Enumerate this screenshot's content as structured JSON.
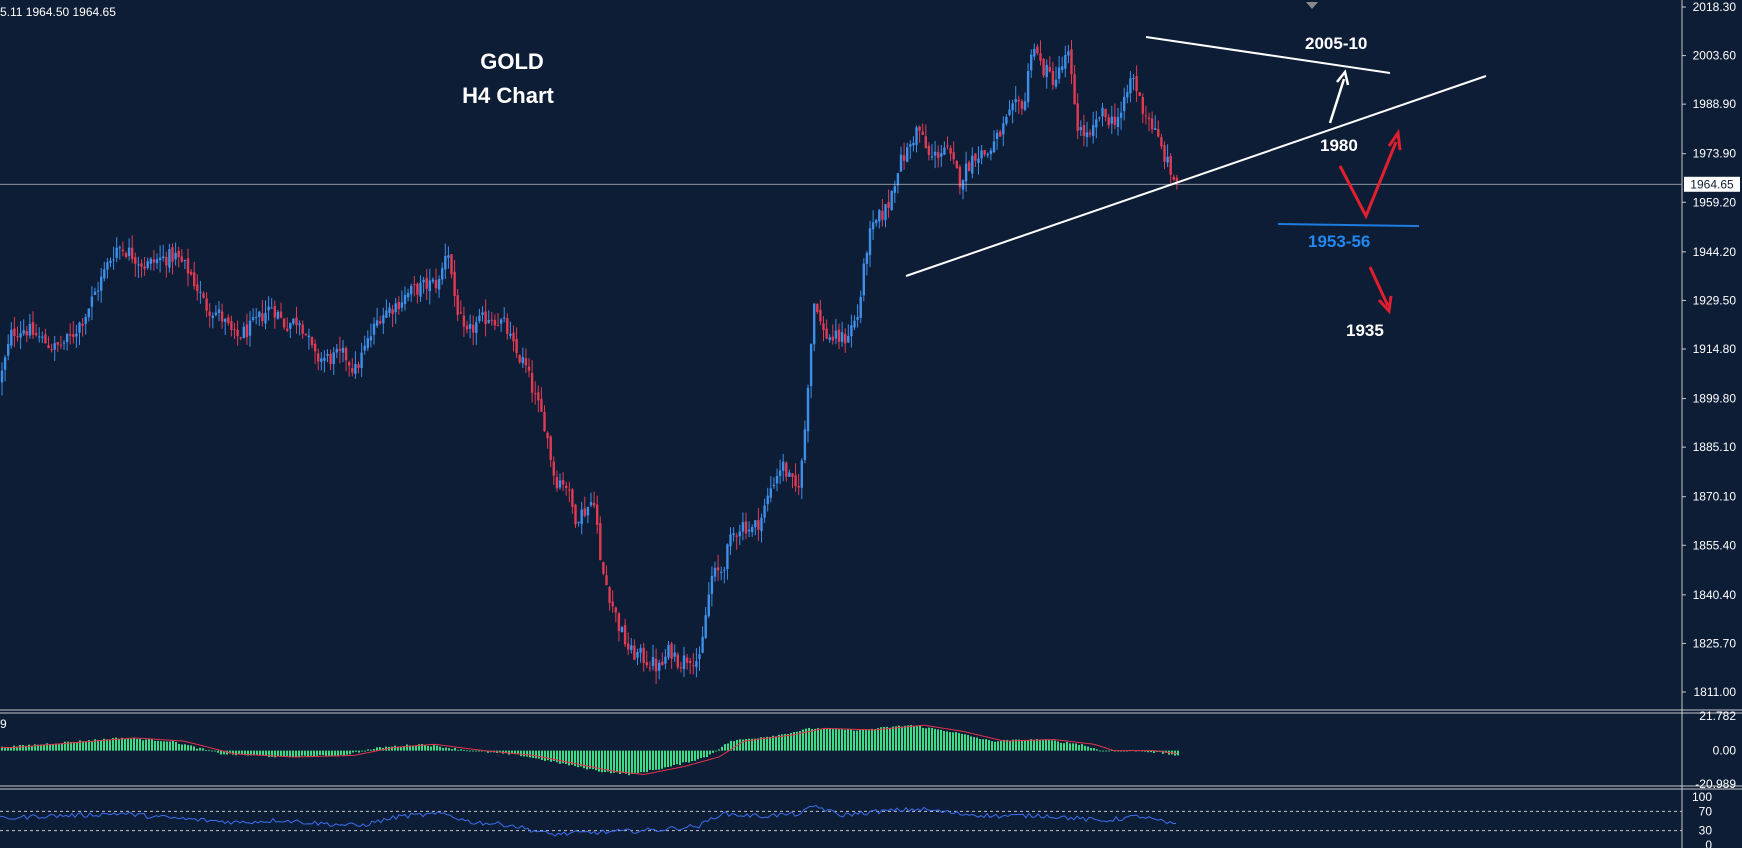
{
  "header": {
    "ohlc_readout": "5.11 1964.50 1964.65",
    "title_line1": "GOLD",
    "title_line2": "H4 Chart"
  },
  "colors": {
    "background": "#0d1d36",
    "bull": "#3d8fe8",
    "bear": "#e23a52",
    "hist": "#3ddc84",
    "signal": "#e2344a",
    "rsi": "#3a6ff0",
    "trendline": "#ffffff",
    "support": "#1e7ce0"
  },
  "annotations": {
    "target_up": "2005-10",
    "pivot": "1980",
    "support": "1953-56",
    "target_down": "1935"
  },
  "chart_data": [
    {
      "type": "candlestick",
      "title": "GOLD H4 Chart",
      "ylim": [
        1805,
        2018.3
      ],
      "yticks": [
        "2018.30",
        "2003.60",
        "1988.90",
        "1973.90",
        "1959.20",
        "1944.20",
        "1929.50",
        "1914.80",
        "1899.80",
        "1885.10",
        "1870.10",
        "1855.40",
        "1840.40",
        "1825.70",
        "1811.00"
      ],
      "last_price": "1964.65",
      "close_path": [
        [
          0,
          1905
        ],
        [
          12,
          1920
        ],
        [
          25,
          1921
        ],
        [
          40,
          1918
        ],
        [
          55,
          1915
        ],
        [
          70,
          1918
        ],
        [
          85,
          1925
        ],
        [
          100,
          1935
        ],
        [
          110,
          1942
        ],
        [
          118,
          1946
        ],
        [
          130,
          1944
        ],
        [
          145,
          1940
        ],
        [
          160,
          1942
        ],
        [
          175,
          1943
        ],
        [
          190,
          1938
        ],
        [
          205,
          1928
        ],
        [
          220,
          1925
        ],
        [
          235,
          1918
        ],
        [
          250,
          1921
        ],
        [
          262,
          1925
        ],
        [
          272,
          1928
        ],
        [
          285,
          1922
        ],
        [
          300,
          1924
        ],
        [
          315,
          1912
        ],
        [
          330,
          1912
        ],
        [
          345,
          1913
        ],
        [
          355,
          1908
        ],
        [
          365,
          1915
        ],
        [
          380,
          1925
        ],
        [
          395,
          1928
        ],
        [
          410,
          1932
        ],
        [
          425,
          1934
        ],
        [
          440,
          1935
        ],
        [
          447,
          1947
        ],
        [
          455,
          1930
        ],
        [
          465,
          1918
        ],
        [
          475,
          1922
        ],
        [
          490,
          1925
        ],
        [
          505,
          1922
        ],
        [
          515,
          1914
        ],
        [
          525,
          1910
        ],
        [
          535,
          1900
        ],
        [
          545,
          1892
        ],
        [
          555,
          1875
        ],
        [
          565,
          1875
        ],
        [
          575,
          1864
        ],
        [
          585,
          1866
        ],
        [
          595,
          1870
        ],
        [
          600,
          1850
        ],
        [
          610,
          1840
        ],
        [
          620,
          1830
        ],
        [
          630,
          1823
        ],
        [
          640,
          1822
        ],
        [
          650,
          1820
        ],
        [
          660,
          1818
        ],
        [
          670,
          1824
        ],
        [
          680,
          1820
        ],
        [
          690,
          1822
        ],
        [
          700,
          1820
        ],
        [
          706,
          1835
        ],
        [
          712,
          1846
        ],
        [
          722,
          1848
        ],
        [
          732,
          1858
        ],
        [
          742,
          1862
        ],
        [
          752,
          1860
        ],
        [
          762,
          1864
        ],
        [
          772,
          1874
        ],
        [
          782,
          1880
        ],
        [
          790,
          1875
        ],
        [
          797,
          1872
        ],
        [
          803,
          1882
        ],
        [
          808,
          1905
        ],
        [
          815,
          1932
        ],
        [
          822,
          1920
        ],
        [
          832,
          1918
        ],
        [
          845,
          1918
        ],
        [
          858,
          1925
        ],
        [
          868,
          1948
        ],
        [
          878,
          1954
        ],
        [
          888,
          1958
        ],
        [
          898,
          1970
        ],
        [
          908,
          1975
        ],
        [
          918,
          1982
        ],
        [
          930,
          1972
        ],
        [
          945,
          1976
        ],
        [
          960,
          1966
        ],
        [
          975,
          1974
        ],
        [
          988,
          1974
        ],
        [
          1000,
          1980
        ],
        [
          1015,
          1988
        ],
        [
          1025,
          1990
        ],
        [
          1032,
          2008
        ],
        [
          1042,
          2000
        ],
        [
          1055,
          1996
        ],
        [
          1068,
          2004
        ],
        [
          1078,
          1982
        ],
        [
          1090,
          1978
        ],
        [
          1100,
          1986
        ],
        [
          1112,
          1984
        ],
        [
          1122,
          1986
        ],
        [
          1132,
          1998
        ],
        [
          1142,
          1988
        ],
        [
          1150,
          1984
        ],
        [
          1158,
          1978
        ],
        [
          1166,
          1972
        ],
        [
          1172,
          1967
        ],
        [
          1178,
          1965
        ]
      ]
    },
    {
      "type": "bar",
      "name": "histogram-oscillator",
      "ylim": [
        -20.989,
        21.782
      ],
      "yticks": [
        "21.782",
        "0.00",
        "-20.989"
      ],
      "label_left": "9",
      "hist_path": [
        [
          0,
          2
        ],
        [
          60,
          5
        ],
        [
          120,
          8
        ],
        [
          170,
          6
        ],
        [
          220,
          -2
        ],
        [
          280,
          -4
        ],
        [
          340,
          -3
        ],
        [
          380,
          2
        ],
        [
          420,
          4
        ],
        [
          470,
          0
        ],
        [
          520,
          -3
        ],
        [
          560,
          -8
        ],
        [
          600,
          -13
        ],
        [
          630,
          -15
        ],
        [
          670,
          -10
        ],
        [
          705,
          -4
        ],
        [
          730,
          6
        ],
        [
          780,
          10
        ],
        [
          810,
          14
        ],
        [
          860,
          13
        ],
        [
          910,
          16
        ],
        [
          950,
          12
        ],
        [
          990,
          6
        ],
        [
          1040,
          7
        ],
        [
          1080,
          4
        ],
        [
          1100,
          0
        ],
        [
          1140,
          0
        ],
        [
          1178,
          -3
        ]
      ]
    },
    {
      "type": "line",
      "name": "rsi",
      "ylim": [
        0,
        100
      ],
      "yticks": [
        "100",
        "70",
        "30",
        "0"
      ],
      "rsi_path": [
        [
          0,
          55
        ],
        [
          40,
          60
        ],
        [
          80,
          62
        ],
        [
          120,
          66
        ],
        [
          160,
          58
        ],
        [
          200,
          52
        ],
        [
          240,
          47
        ],
        [
          280,
          52
        ],
        [
          320,
          45
        ],
        [
          360,
          40
        ],
        [
          400,
          60
        ],
        [
          445,
          65
        ],
        [
          470,
          48
        ],
        [
          510,
          42
        ],
        [
          550,
          22
        ],
        [
          580,
          25
        ],
        [
          620,
          28
        ],
        [
          660,
          32
        ],
        [
          700,
          40
        ],
        [
          720,
          65
        ],
        [
          760,
          60
        ],
        [
          800,
          65
        ],
        [
          815,
          82
        ],
        [
          840,
          62
        ],
        [
          880,
          70
        ],
        [
          920,
          75
        ],
        [
          960,
          65
        ],
        [
          1000,
          60
        ],
        [
          1040,
          62
        ],
        [
          1080,
          55
        ],
        [
          1100,
          50
        ],
        [
          1140,
          60
        ],
        [
          1178,
          40
        ]
      ]
    }
  ]
}
